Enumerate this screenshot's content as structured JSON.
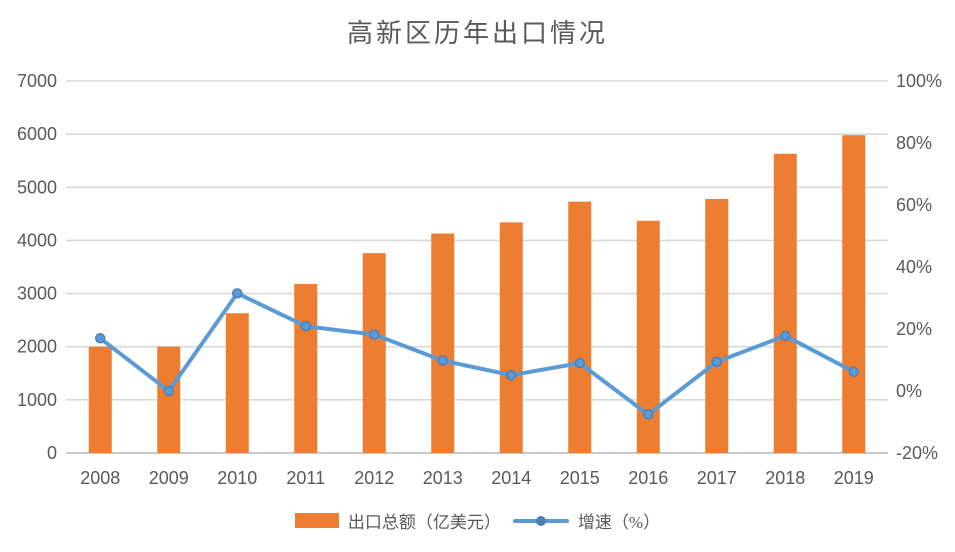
{
  "chart_data": {
    "type": "combo",
    "title": "高新区历年出口情况",
    "categories": [
      "2008",
      "2009",
      "2010",
      "2011",
      "2012",
      "2013",
      "2014",
      "2015",
      "2016",
      "2017",
      "2018",
      "2019"
    ],
    "series": [
      {
        "name": "出口总额（亿美元）",
        "type": "bar",
        "axis": "left",
        "values": [
          2000,
          2000,
          2630,
          3180,
          3760,
          4130,
          4340,
          4730,
          4370,
          4780,
          5630,
          5980
        ]
      },
      {
        "name": "增速（%）",
        "type": "line",
        "axis": "right",
        "values": [
          17.0,
          0.0,
          31.5,
          20.9,
          18.2,
          9.8,
          5.1,
          9.0,
          -7.6,
          9.4,
          17.8,
          6.2
        ]
      }
    ],
    "y_left": {
      "min": 0,
      "max": 7000,
      "ticks": [
        0,
        1000,
        2000,
        3000,
        4000,
        5000,
        6000,
        7000
      ],
      "tick_labels": [
        "0",
        "1000",
        "2000",
        "3000",
        "4000",
        "5000",
        "6000",
        "7000"
      ]
    },
    "y_right": {
      "min": -20,
      "max": 100,
      "ticks": [
        -20,
        0,
        20,
        40,
        60,
        80,
        100
      ],
      "tick_labels": [
        "-20%",
        "0%",
        "20%",
        "40%",
        "60%",
        "80%",
        "100%"
      ]
    },
    "grid": true,
    "legend_position": "bottom"
  },
  "colors": {
    "bar": "#ED7D31",
    "line": "#5B9BD5",
    "marker": "#4A7EBB",
    "grid": "#D9D9D9",
    "axis_line": "#C9C9C9",
    "text": "#595959"
  }
}
